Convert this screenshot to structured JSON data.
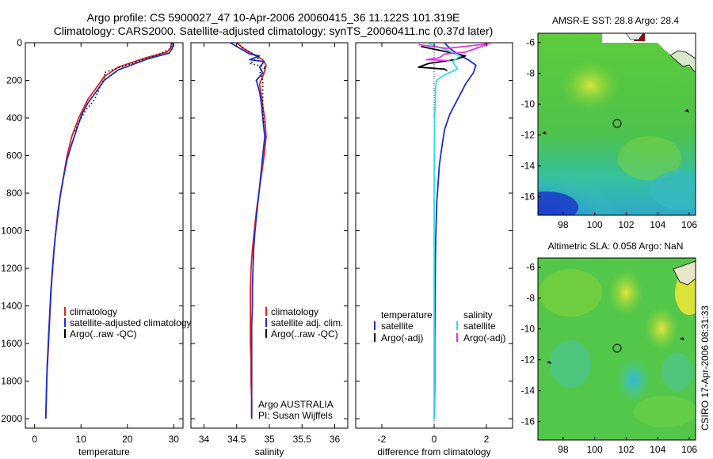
{
  "header": {
    "line1": "Argo profile: CS 5900027_47 10-Apr-2006 20060415_36 11.122S 101.319E",
    "line2": "Climatology: CARS2000. Satellite-adjusted climatology: synTS_20060411.nc (0.37d later)"
  },
  "footer": {
    "credit": "CSIRO 17-Apr-2006 08:31:33"
  },
  "colors": {
    "climatology": "#e8201a",
    "satellite": "#1a2fd6",
    "argo": "#000000",
    "salinity_satellite": "#33dde6",
    "salinity_argo": "#e233e0"
  },
  "chart_data": [
    {
      "id": "temperature",
      "type": "line",
      "xlabel": "temperature",
      "ylabel": "",
      "xlim": [
        -2,
        32
      ],
      "ylim": [
        2050,
        0
      ],
      "xticks": [
        0,
        10,
        20,
        30
      ],
      "yticks": [
        0,
        200,
        400,
        600,
        800,
        1000,
        1200,
        1400,
        1600,
        1800,
        2000
      ],
      "legend": {
        "placement": "lower-middle",
        "entries": [
          "climatology",
          "satellite-adjusted climatology",
          "Argo(..raw -QC)"
        ]
      },
      "series": [
        {
          "name": "climatology",
          "color": "#e8201a",
          "style": "solid",
          "points": [
            [
              29.5,
              0
            ],
            [
              29.3,
              30
            ],
            [
              28.5,
              50
            ],
            [
              24,
              80
            ],
            [
              18,
              130
            ],
            [
              15,
              180
            ],
            [
              13,
              250
            ],
            [
              11.5,
              300
            ],
            [
              10.5,
              350
            ],
            [
              9.5,
              400
            ],
            [
              8,
              500
            ],
            [
              7,
              600
            ],
            [
              6.3,
              700
            ],
            [
              5.6,
              800
            ],
            [
              5,
              900
            ],
            [
              4.6,
              1000
            ],
            [
              4.2,
              1100
            ],
            [
              3.9,
              1200
            ],
            [
              3.6,
              1300
            ],
            [
              3.4,
              1400
            ],
            [
              3.2,
              1500
            ],
            [
              3,
              1600
            ],
            [
              2.8,
              1700
            ],
            [
              2.6,
              1800
            ],
            [
              2.5,
              1900
            ],
            [
              2.4,
              2000
            ]
          ]
        },
        {
          "name": "satellite-adjusted climatology",
          "color": "#1a2fd6",
          "style": "solid",
          "points": [
            [
              29.9,
              0
            ],
            [
              29.7,
              30
            ],
            [
              29,
              55
            ],
            [
              24.5,
              85
            ],
            [
              18,
              145
            ],
            [
              15,
              200
            ],
            [
              13,
              270
            ],
            [
              11.5,
              320
            ],
            [
              10.2,
              380
            ],
            [
              9.2,
              450
            ],
            [
              8,
              540
            ],
            [
              7,
              620
            ],
            [
              6.2,
              720
            ],
            [
              5.5,
              820
            ],
            [
              5,
              920
            ],
            [
              4.5,
              1020
            ],
            [
              4.1,
              1120
            ],
            [
              3.8,
              1220
            ],
            [
              3.5,
              1320
            ],
            [
              3.3,
              1420
            ],
            [
              3.1,
              1520
            ],
            [
              2.9,
              1620
            ],
            [
              2.7,
              1720
            ],
            [
              2.6,
              1820
            ],
            [
              2.5,
              1920
            ],
            [
              2.4,
              2000
            ]
          ]
        },
        {
          "name": "Argo(..raw -QC)",
          "color": "#000000",
          "style": "dotted",
          "points": [
            [
              29.6,
              0
            ],
            [
              29.4,
              30
            ],
            [
              27,
              60
            ],
            [
              21,
              110
            ],
            [
              16,
              150
            ],
            [
              15,
              160
            ],
            [
              15.2,
              180
            ],
            [
              14,
              240
            ],
            [
              13,
              300
            ],
            [
              11,
              360
            ],
            [
              9.6,
              420
            ],
            [
              8.5,
              480
            ]
          ]
        }
      ]
    },
    {
      "id": "salinity",
      "type": "line",
      "xlabel": "salinity",
      "ylabel": "",
      "xlim": [
        33.8,
        36.2
      ],
      "ylim": [
        2050,
        0
      ],
      "xticks": [
        34,
        34.5,
        35,
        35.5,
        36
      ],
      "yticks": [
        0,
        200,
        400,
        600,
        800,
        1000,
        1200,
        1400,
        1600,
        1800,
        2000
      ],
      "legend": {
        "placement": "lower-right",
        "entries": [
          "climatology",
          "satellite adj. clim.",
          "Argo(..raw -QC)"
        ]
      },
      "annotations": [
        "Argo AUSTRALIA",
        "PI: Susan Wijffels"
      ],
      "series": [
        {
          "name": "climatology",
          "color": "#e8201a",
          "style": "solid",
          "points": [
            [
              34.5,
              0
            ],
            [
              34.6,
              30
            ],
            [
              34.75,
              60
            ],
            [
              34.9,
              90
            ],
            [
              34.95,
              120
            ],
            [
              34.92,
              160
            ],
            [
              34.85,
              220
            ],
            [
              34.88,
              280
            ],
            [
              34.9,
              340
            ],
            [
              34.93,
              400
            ],
            [
              34.95,
              500
            ],
            [
              34.92,
              600
            ],
            [
              34.88,
              700
            ],
            [
              34.84,
              800
            ],
            [
              34.8,
              900
            ],
            [
              34.77,
              1000
            ],
            [
              34.74,
              1100
            ],
            [
              34.72,
              1200
            ],
            [
              34.71,
              1300
            ],
            [
              34.71,
              1400
            ],
            [
              34.71,
              1500
            ],
            [
              34.71,
              1600
            ],
            [
              34.72,
              1700
            ],
            [
              34.72,
              1800
            ],
            [
              34.73,
              1900
            ],
            [
              34.73,
              2000
            ]
          ]
        },
        {
          "name": "satellite adj. clim.",
          "color": "#1a2fd6",
          "style": "solid",
          "points": [
            [
              34.4,
              0
            ],
            [
              34.55,
              30
            ],
            [
              34.7,
              60
            ],
            [
              34.85,
              70
            ],
            [
              34.7,
              90
            ],
            [
              34.92,
              100
            ],
            [
              34.85,
              130
            ],
            [
              34.9,
              160
            ],
            [
              34.8,
              200
            ],
            [
              34.85,
              260
            ],
            [
              34.88,
              330
            ],
            [
              34.9,
              400
            ],
            [
              34.93,
              500
            ],
            [
              34.9,
              600
            ],
            [
              34.87,
              700
            ],
            [
              34.84,
              800
            ],
            [
              34.81,
              900
            ],
            [
              34.78,
              1000
            ],
            [
              34.76,
              1100
            ],
            [
              34.75,
              1200
            ],
            [
              34.74,
              1300
            ],
            [
              34.74,
              1400
            ],
            [
              34.73,
              1500
            ],
            [
              34.73,
              1600
            ],
            [
              34.73,
              1700
            ],
            [
              34.73,
              1800
            ],
            [
              34.73,
              1900
            ],
            [
              34.73,
              2000
            ]
          ]
        },
        {
          "name": "Argo(..raw -QC)",
          "color": "#000000",
          "style": "dotted",
          "points": [
            [
              34.5,
              0
            ],
            [
              34.65,
              40
            ],
            [
              34.85,
              80
            ],
            [
              34.7,
              110
            ],
            [
              34.95,
              130
            ],
            [
              34.85,
              150
            ],
            [
              34.9,
              200
            ],
            [
              34.9,
              300
            ],
            [
              34.9,
              380
            ],
            [
              34.92,
              440
            ]
          ]
        }
      ]
    },
    {
      "id": "difference",
      "type": "line",
      "xlabel": "difference from climatology",
      "ylabel": "",
      "xlim": [
        -3,
        3
      ],
      "ylim": [
        2050,
        0
      ],
      "xticks": [
        -2,
        0,
        2
      ],
      "yticks": [
        0,
        200,
        400,
        600,
        800,
        1000,
        1200,
        1400,
        1600,
        1800,
        2000
      ],
      "legend": {
        "placement": "lower-middle",
        "groups": [
          {
            "heading": "temperature",
            "entries": [
              "satellite",
              "Argo(-adj)"
            ]
          },
          {
            "heading": "salinity",
            "entries": [
              "satellite",
              "Argo(-adj)"
            ]
          }
        ]
      },
      "series": [
        {
          "name": "temperature satellite",
          "color": "#1a2fd6",
          "style": "solid",
          "points": [
            [
              0.4,
              0
            ],
            [
              0.6,
              30
            ],
            [
              0.9,
              60
            ],
            [
              1.3,
              90
            ],
            [
              1.6,
              120
            ],
            [
              1.5,
              160
            ],
            [
              1.2,
              220
            ],
            [
              0.9,
              300
            ],
            [
              0.6,
              380
            ],
            [
              0.4,
              460
            ],
            [
              0.3,
              550
            ],
            [
              0.2,
              650
            ],
            [
              0.15,
              750
            ],
            [
              0.1,
              850
            ],
            [
              0.08,
              950
            ],
            [
              0.06,
              1050
            ],
            [
              0.05,
              1150
            ],
            [
              0.04,
              1300
            ],
            [
              0.03,
              1450
            ],
            [
              0.02,
              1600
            ],
            [
              0.02,
              1800
            ],
            [
              0.01,
              2000
            ]
          ]
        },
        {
          "name": "temperature Argo(-adj)",
          "color": "#000000",
          "style": "solid",
          "points": [
            [
              -0.5,
              20
            ],
            [
              0.2,
              40
            ],
            [
              1.2,
              70
            ],
            [
              0.8,
              90
            ],
            [
              -0.2,
              110
            ],
            [
              -0.6,
              130
            ],
            [
              0.4,
              140
            ],
            [
              0.5,
              150
            ]
          ]
        },
        {
          "name": "salinity satellite",
          "color": "#33dde6",
          "style": "solid",
          "points": [
            [
              -0.3,
              0
            ],
            [
              0.5,
              40
            ],
            [
              1.0,
              70
            ],
            [
              0.7,
              100
            ],
            [
              0.9,
              140
            ],
            [
              0.4,
              170
            ],
            [
              0.1,
              200
            ],
            [
              0.05,
              240
            ],
            [
              0.05,
              300
            ],
            [
              0.02,
              400
            ],
            [
              0.01,
              500
            ],
            [
              0,
              700
            ],
            [
              0,
              1000
            ],
            [
              0,
              1300
            ],
            [
              0,
              1600
            ],
            [
              0,
              2000
            ]
          ]
        },
        {
          "name": "salinity Argo(-adj)",
          "color": "#e233e0",
          "style": "solid",
          "points": [
            [
              -0.6,
              10
            ],
            [
              0.5,
              30
            ],
            [
              1.8,
              10
            ],
            [
              2.2,
              0
            ],
            [
              1.2,
              50
            ],
            [
              0.4,
              60
            ],
            [
              0.2,
              80
            ],
            [
              -0.3,
              90
            ],
            [
              0.6,
              95
            ]
          ]
        }
      ]
    },
    {
      "id": "sst-map",
      "type": "heatmap",
      "title": "AMSR-E SST: 28.8 Argo: 28.4",
      "xlim": [
        96.4,
        106.4
      ],
      "ylim": [
        -17.2,
        -5.4
      ],
      "xticks": [
        98,
        100,
        102,
        104,
        106
      ],
      "yticks": [
        -6,
        -8,
        -10,
        -12,
        -14,
        -16
      ],
      "marker": {
        "lon": 101.319,
        "lat": -11.122
      }
    },
    {
      "id": "sla-map",
      "type": "heatmap",
      "title": "Altimetric SLA: 0.058 Argo: NaN",
      "xlim": [
        96.4,
        106.4
      ],
      "ylim": [
        -17.2,
        -5.4
      ],
      "xticks": [
        98,
        100,
        102,
        104,
        106
      ],
      "yticks": [
        -6,
        -8,
        -10,
        -12,
        -14,
        -16
      ],
      "marker": {
        "lon": 101.319,
        "lat": -11.122
      }
    }
  ]
}
